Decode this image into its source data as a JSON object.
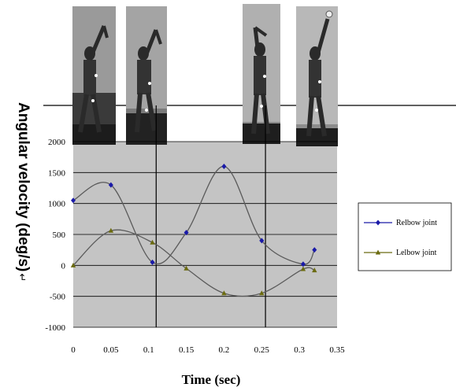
{
  "chart_data": {
    "type": "line",
    "title": "",
    "xlabel": "Time (sec)",
    "ylabel": "Angular velocity (deg/s)",
    "xlim": [
      0,
      0.35
    ],
    "ylim": [
      -1000,
      2000
    ],
    "x_ticks": [
      0,
      0.05,
      0.1,
      0.15,
      0.2,
      0.25,
      0.3,
      0.35
    ],
    "x_tick_labels": [
      "0",
      "0.05",
      "0.1",
      "0.15",
      "0.2",
      "0.25",
      "0.3",
      "0.35"
    ],
    "y_ticks": [
      -1000,
      -500,
      0,
      500,
      1000,
      1500,
      2000
    ],
    "y_tick_labels": [
      "-1000",
      "-500",
      "0",
      "500",
      "1000",
      "1500",
      "2000"
    ],
    "grid": true,
    "legend_position": "right",
    "vertical_markers_x": [
      0.11,
      0.255
    ],
    "series": [
      {
        "name": "Relbow joint",
        "color": "#1a1aa8",
        "marker": "diamond",
        "points": [
          {
            "x": 0,
            "y": 1050
          },
          {
            "x": 0.05,
            "y": 1300
          },
          {
            "x": 0.105,
            "y": 50
          },
          {
            "x": 0.15,
            "y": 530
          },
          {
            "x": 0.2,
            "y": 1600
          },
          {
            "x": 0.25,
            "y": 400
          },
          {
            "x": 0.305,
            "y": 20
          },
          {
            "x": 0.32,
            "y": 250
          }
        ]
      },
      {
        "name": "Lelbow joint",
        "color": "#6b6b10",
        "marker": "triangle",
        "points": [
          {
            "x": 0,
            "y": 0
          },
          {
            "x": 0.05,
            "y": 560
          },
          {
            "x": 0.105,
            "y": 370
          },
          {
            "x": 0.15,
            "y": -50
          },
          {
            "x": 0.2,
            "y": -450
          },
          {
            "x": 0.25,
            "y": -450
          },
          {
            "x": 0.305,
            "y": -60
          },
          {
            "x": 0.32,
            "y": -80
          }
        ]
      }
    ]
  },
  "photos": [
    {
      "icon": "throwing-athlete-photo-1"
    },
    {
      "icon": "throwing-athlete-photo-2"
    },
    {
      "icon": "throwing-athlete-photo-3"
    },
    {
      "icon": "throwing-athlete-photo-4"
    }
  ],
  "ylabel_suffix_glyph": "↵"
}
